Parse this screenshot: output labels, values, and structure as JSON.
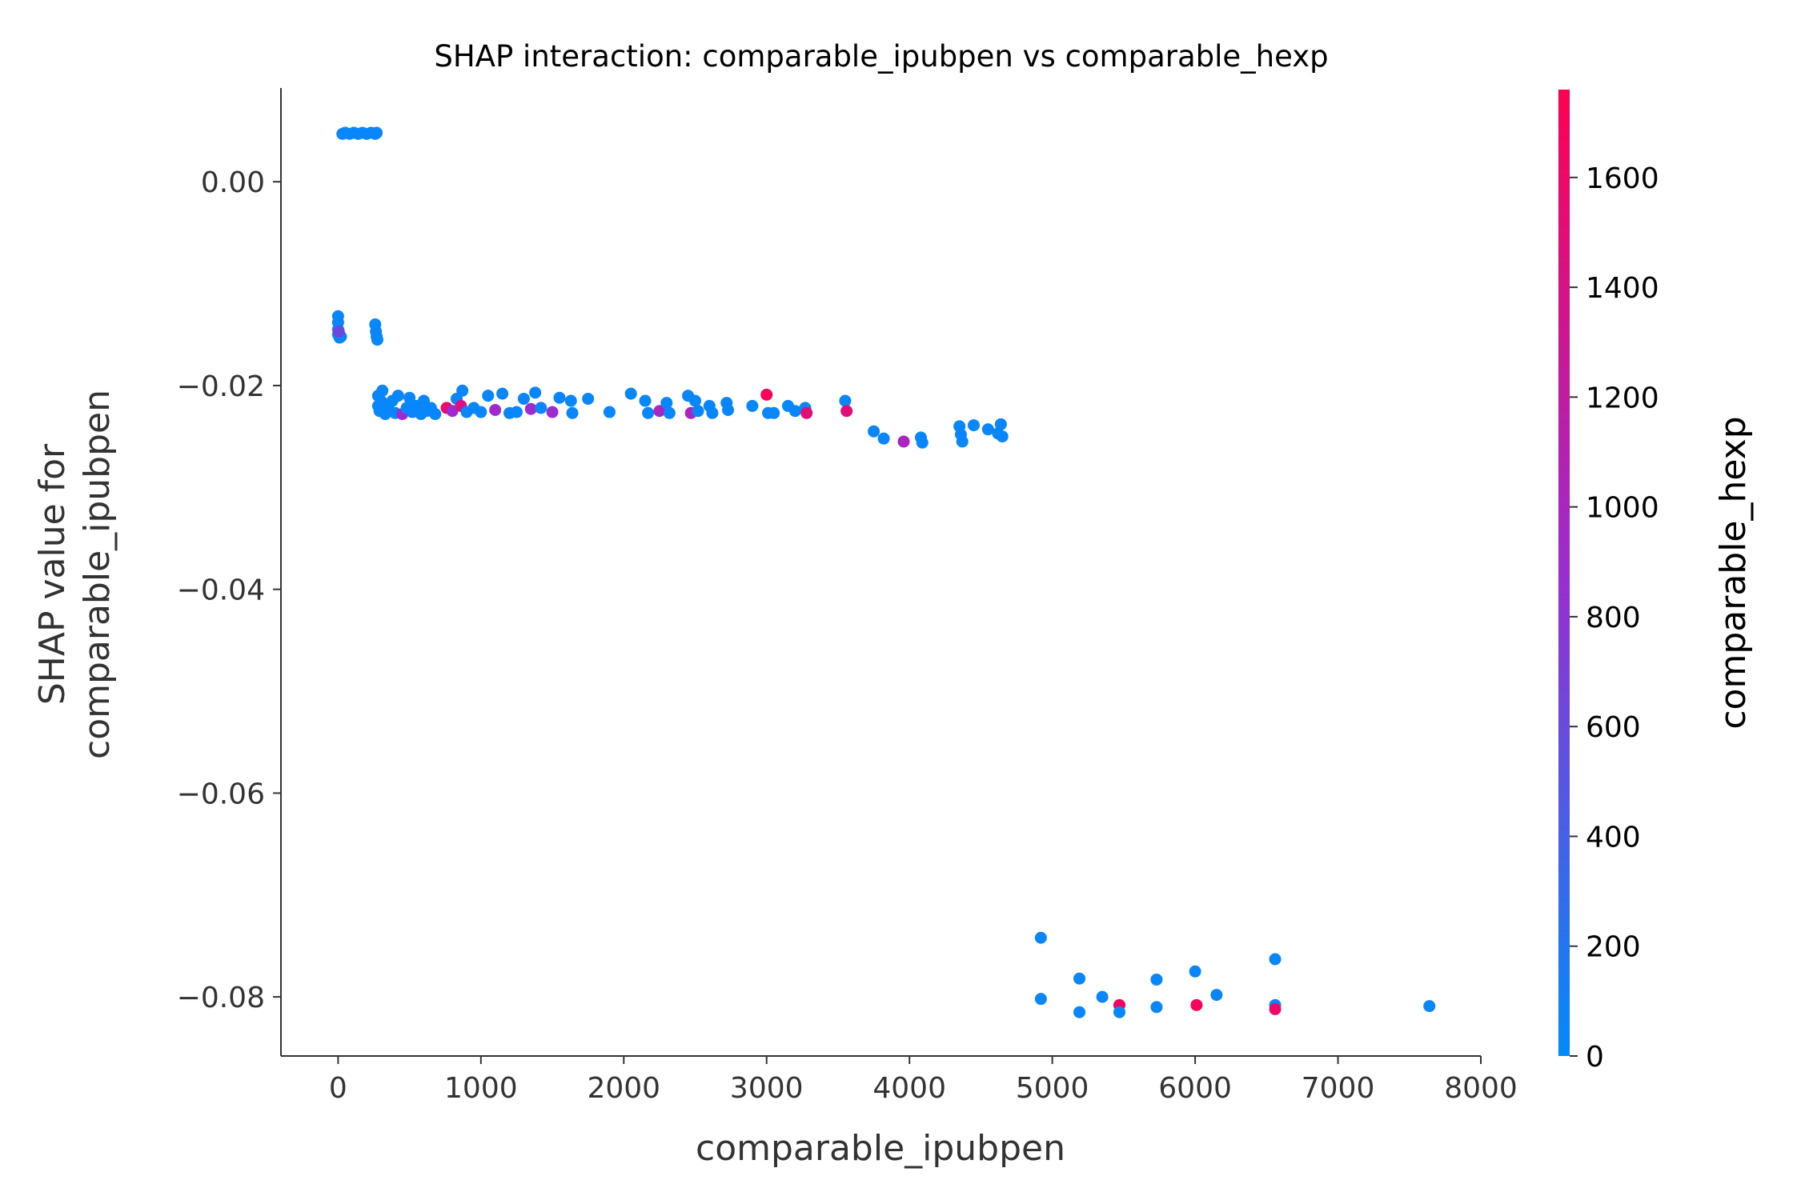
{
  "chart_data": {
    "type": "scatter",
    "title": "SHAP interaction: comparable_ipubpen vs comparable_hexp",
    "xlabel": "comparable_ipubpen",
    "ylabel_line1": "SHAP value for",
    "ylabel_line2": "comparable_ipubpen",
    "colorbar_label": "comparable_hexp",
    "xlim": [
      -400,
      8000
    ],
    "ylim": [
      -0.0858,
      0.0092
    ],
    "xticks": [
      0,
      1000,
      2000,
      3000,
      4000,
      5000,
      6000,
      7000,
      8000
    ],
    "xtick_labels": [
      "0",
      "1000",
      "2000",
      "3000",
      "4000",
      "5000",
      "6000",
      "7000",
      "8000"
    ],
    "yticks": [
      0.0,
      -0.02,
      -0.04,
      -0.06,
      -0.08
    ],
    "ytick_labels": [
      "0.00",
      "−0.02",
      "−0.04",
      "−0.06",
      "−0.08"
    ],
    "colorbar_range": [
      0,
      1760
    ],
    "colorbar_ticks": [
      0,
      200,
      400,
      600,
      800,
      1000,
      1200,
      1400,
      1600
    ],
    "colorbar_tick_labels": [
      "0",
      "200",
      "400",
      "600",
      "800",
      "1000",
      "1200",
      "1400",
      "1600"
    ],
    "colormap": [
      "#008bfb",
      "#ff0052"
    ],
    "grid": false,
    "legend": "none",
    "points": [
      [
        30,
        0.0047,
        50
      ],
      [
        50,
        0.0048,
        50
      ],
      [
        80,
        0.0047,
        50
      ],
      [
        110,
        0.0048,
        50
      ],
      [
        140,
        0.0047,
        50
      ],
      [
        170,
        0.0048,
        50
      ],
      [
        200,
        0.0047,
        50
      ],
      [
        230,
        0.0048,
        50
      ],
      [
        260,
        0.0047,
        50
      ],
      [
        270,
        0.0048,
        50
      ],
      [
        0,
        -0.0132,
        50
      ],
      [
        0,
        -0.0138,
        50
      ],
      [
        0,
        -0.0145,
        50
      ],
      [
        0,
        -0.015,
        50
      ],
      [
        10,
        -0.0153,
        50
      ],
      [
        20,
        -0.0152,
        50
      ],
      [
        5,
        -0.0147,
        600
      ],
      [
        260,
        -0.014,
        50
      ],
      [
        265,
        -0.0147,
        50
      ],
      [
        270,
        -0.0152,
        50
      ],
      [
        275,
        -0.0155,
        50
      ],
      [
        280,
        -0.021,
        50
      ],
      [
        280,
        -0.022,
        50
      ],
      [
        290,
        -0.0225,
        50
      ],
      [
        300,
        -0.0215,
        50
      ],
      [
        310,
        -0.0205,
        50
      ],
      [
        330,
        -0.0228,
        50
      ],
      [
        350,
        -0.022,
        50
      ],
      [
        380,
        -0.0215,
        50
      ],
      [
        400,
        -0.0227,
        50
      ],
      [
        420,
        -0.021,
        50
      ],
      [
        450,
        -0.0228,
        900
      ],
      [
        480,
        -0.0222,
        50
      ],
      [
        500,
        -0.0212,
        50
      ],
      [
        520,
        -0.0226,
        50
      ],
      [
        550,
        -0.022,
        50
      ],
      [
        580,
        -0.0228,
        50
      ],
      [
        600,
        -0.0215,
        50
      ],
      [
        620,
        -0.0225,
        50
      ],
      [
        650,
        -0.0222,
        50
      ],
      [
        680,
        -0.0228,
        50
      ],
      [
        760,
        -0.0222,
        1600
      ],
      [
        800,
        -0.0225,
        900
      ],
      [
        830,
        -0.0213,
        50
      ],
      [
        860,
        -0.022,
        1400
      ],
      [
        870,
        -0.0205,
        50
      ],
      [
        900,
        -0.0226,
        50
      ],
      [
        950,
        -0.0222,
        50
      ],
      [
        1000,
        -0.0226,
        50
      ],
      [
        1050,
        -0.021,
        50
      ],
      [
        1100,
        -0.0224,
        900
      ],
      [
        1150,
        -0.0208,
        50
      ],
      [
        1200,
        -0.0227,
        50
      ],
      [
        1250,
        -0.0226,
        50
      ],
      [
        1300,
        -0.0213,
        50
      ],
      [
        1350,
        -0.0223,
        900
      ],
      [
        1380,
        -0.0207,
        50
      ],
      [
        1420,
        -0.0222,
        50
      ],
      [
        1500,
        -0.0226,
        900
      ],
      [
        1550,
        -0.0212,
        50
      ],
      [
        1630,
        -0.0215,
        50
      ],
      [
        1640,
        -0.0227,
        50
      ],
      [
        1750,
        -0.0213,
        50
      ],
      [
        1900,
        -0.0226,
        50
      ],
      [
        2050,
        -0.0208,
        50
      ],
      [
        2150,
        -0.0215,
        50
      ],
      [
        2170,
        -0.0227,
        50
      ],
      [
        2250,
        -0.0225,
        1000
      ],
      [
        2300,
        -0.0217,
        50
      ],
      [
        2320,
        -0.0227,
        50
      ],
      [
        2450,
        -0.021,
        50
      ],
      [
        2470,
        -0.0227,
        1000
      ],
      [
        2500,
        -0.0215,
        50
      ],
      [
        2520,
        -0.0225,
        50
      ],
      [
        2600,
        -0.022,
        50
      ],
      [
        2620,
        -0.0227,
        50
      ],
      [
        2720,
        -0.0217,
        50
      ],
      [
        2730,
        -0.0224,
        50
      ],
      [
        2900,
        -0.022,
        50
      ],
      [
        3000,
        -0.0209,
        1700
      ],
      [
        3010,
        -0.0227,
        50
      ],
      [
        3050,
        -0.0227,
        50
      ],
      [
        3150,
        -0.022,
        50
      ],
      [
        3200,
        -0.0225,
        50
      ],
      [
        3270,
        -0.0222,
        50
      ],
      [
        3280,
        -0.0227,
        1500
      ],
      [
        3550,
        -0.0215,
        50
      ],
      [
        3560,
        -0.0225,
        1500
      ],
      [
        3750,
        -0.0245,
        50
      ],
      [
        3820,
        -0.0252,
        50
      ],
      [
        3960,
        -0.0255,
        1000
      ],
      [
        4080,
        -0.0251,
        50
      ],
      [
        4090,
        -0.0256,
        50
      ],
      [
        4350,
        -0.024,
        50
      ],
      [
        4360,
        -0.0248,
        50
      ],
      [
        4370,
        -0.0255,
        50
      ],
      [
        4450,
        -0.0239,
        50
      ],
      [
        4550,
        -0.0243,
        50
      ],
      [
        4620,
        -0.0247,
        50
      ],
      [
        4640,
        -0.0238,
        50
      ],
      [
        4650,
        -0.025,
        50
      ],
      [
        4920,
        -0.0742,
        50
      ],
      [
        4920,
        -0.0802,
        50
      ],
      [
        5190,
        -0.0782,
        50
      ],
      [
        5190,
        -0.0815,
        50
      ],
      [
        5350,
        -0.08,
        50
      ],
      [
        5470,
        -0.0808,
        1700
      ],
      [
        5470,
        -0.0815,
        50
      ],
      [
        5730,
        -0.0783,
        50
      ],
      [
        5730,
        -0.081,
        50
      ],
      [
        6000,
        -0.0775,
        50
      ],
      [
        6010,
        -0.0808,
        1700
      ],
      [
        6150,
        -0.0798,
        50
      ],
      [
        6560,
        -0.0763,
        50
      ],
      [
        6560,
        -0.0808,
        50
      ],
      [
        6560,
        -0.0812,
        1600
      ],
      [
        7640,
        -0.0809,
        50
      ]
    ]
  }
}
